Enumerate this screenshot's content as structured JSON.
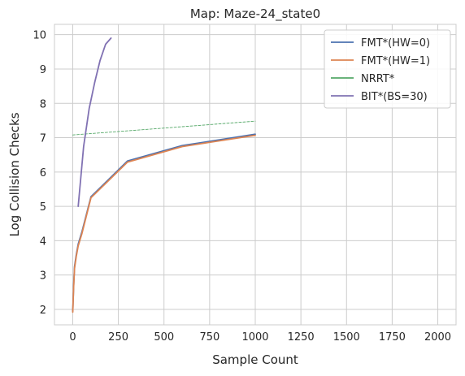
{
  "chart_data": {
    "type": "line",
    "title": "Map: Maze-24_state0",
    "xlabel": "Sample Count",
    "ylabel": "Log Collision Checks",
    "xlim": [
      -100,
      2100
    ],
    "ylim": [
      1.55,
      10.3
    ],
    "x_ticks": [
      0,
      250,
      500,
      750,
      1000,
      1250,
      1500,
      1750,
      2000
    ],
    "y_ticks": [
      2,
      3,
      4,
      5,
      6,
      7,
      8,
      9,
      10
    ],
    "grid": true,
    "legend_position": "top-right",
    "series": [
      {
        "name": "FMT*(HW=0)",
        "color": "#4c72b0",
        "x": [
          0,
          5,
          10,
          20,
          30,
          50,
          100,
          300,
          600,
          1000
        ],
        "y": [
          1.95,
          2.7,
          3.25,
          3.6,
          3.9,
          4.25,
          5.28,
          6.32,
          6.77,
          7.1
        ]
      },
      {
        "name": "FMT*(HW=1)",
        "color": "#dd8452",
        "x": [
          0,
          5,
          10,
          20,
          30,
          50,
          100,
          300,
          600,
          1000
        ],
        "y": [
          1.92,
          2.65,
          3.2,
          3.55,
          3.85,
          4.2,
          5.25,
          6.29,
          6.74,
          7.07
        ]
      },
      {
        "name": "NRRT*",
        "color": "#55a868",
        "dashed": true,
        "x": [
          0,
          1000
        ],
        "y": [
          7.08,
          7.48
        ]
      },
      {
        "name": "BIT*(BS=30)",
        "color": "#8172b3",
        "x": [
          30,
          60,
          90,
          120,
          150,
          180,
          210
        ],
        "y": [
          5.0,
          6.75,
          7.85,
          8.6,
          9.25,
          9.72,
          9.9
        ]
      }
    ]
  }
}
